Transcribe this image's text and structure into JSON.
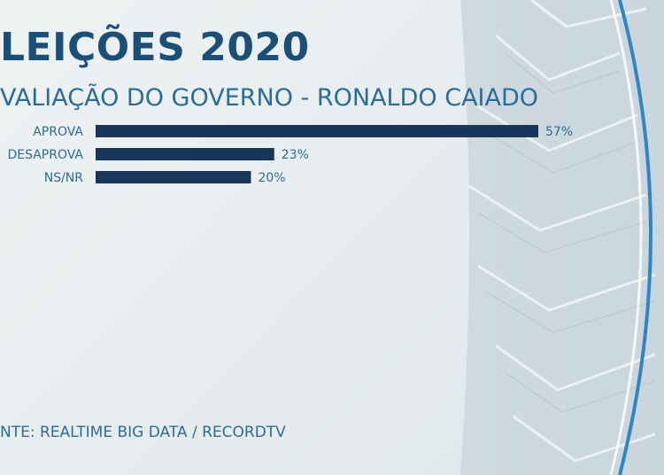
{
  "title": "LEIÇÕES 2020",
  "subtitle": "VALIAÇÃO DO GOVERNO - RONALDO CAIADO",
  "source": "NTE: REALTIME BIG DATA / RECORDTV",
  "colors": {
    "bar": "#17365a",
    "label": "#2a6d98",
    "value": "#2a6d98",
    "title": "#1a4f77"
  },
  "chart_data": {
    "type": "bar",
    "orientation": "horizontal",
    "categories": [
      "APROVA",
      "DESAPROVA",
      "NS/NR"
    ],
    "values": [
      57,
      23,
      20
    ],
    "value_labels": [
      "57%",
      "23%",
      "20%"
    ],
    "xlim": [
      0,
      57
    ],
    "grid": false,
    "title": "VALIAÇÃO DO GOVERNO - RONALDO CAIADO",
    "xlabel": "",
    "ylabel": ""
  }
}
